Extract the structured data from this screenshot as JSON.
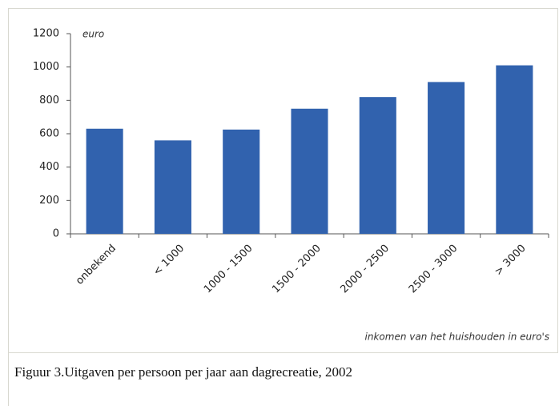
{
  "chart_data": {
    "type": "bar",
    "categories": [
      "onbekend",
      "< 1000",
      "1000 - 1500",
      "1500 - 2000",
      "2000 - 2500",
      "2500 - 3000",
      "> 3000"
    ],
    "values": [
      630,
      560,
      625,
      750,
      820,
      910,
      1010
    ],
    "color": "#3162ae",
    "ylim": [
      0,
      1200
    ],
    "yticks": [
      0,
      200,
      400,
      600,
      800,
      1000,
      1200
    ],
    "y_unit": "euro",
    "x_label": "inkomen van het huishouden in euro's",
    "grid": false
  },
  "caption": "Figuur 3.Uitgaven per persoon per jaar aan dagrecreatie, 2002"
}
